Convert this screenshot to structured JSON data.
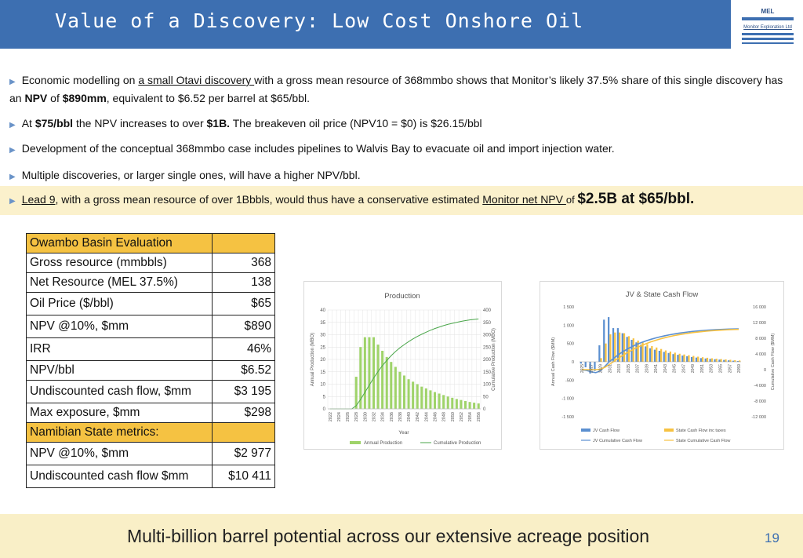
{
  "header": {
    "title": "Value of a Discovery: Low Cost Onshore Oil"
  },
  "logo": {
    "name": "MEL",
    "subtitle": "Monitor Exploration Ltd"
  },
  "bullets": {
    "b1": {
      "pre": "Economic modelling on ",
      "link": "a small Otavi discovery ",
      "mid": "with a gross mean resource of 368mmbo shows that Monitor’s likely 37.5% share of this single discovery has an ",
      "npv_label": "NPV",
      "mid2": " of ",
      "npv_value": "$890mm",
      "post": ", equivalent to $6.52 per barrel at $65/bbl."
    },
    "b2": {
      "pre": "At ",
      "price": "$75/bbl",
      "mid": " the NPV increases to over ",
      "value": "$1B.",
      "post": " The breakeven oil price (NPV10 = $0) is $26.15/bbl"
    },
    "b3": {
      "text": "Development of the conceptual 368mmbo case includes pipelines to Walvis Bay to evacuate oil and import injection water."
    },
    "b4": {
      "text": "Multiple discoveries, or larger single ones, will have a higher NPV/bbl."
    },
    "b5": {
      "link1": "Lead 9",
      "mid": ", with a gross mean resource of over 1Bbbls, would thus have a conservative estimated ",
      "link2": "Monitor net NPV ",
      "of": "of ",
      "big": "$2.5B at $65/bbl."
    }
  },
  "table": {
    "header1": "Owambo Basin Evaluation",
    "rows1": [
      {
        "label": "Gross resource (mmbbls)",
        "value": "368"
      },
      {
        "label": "Net Resource (MEL 37.5%)",
        "value": "138"
      },
      {
        "label": "Oil Price ($/bbl)",
        "value": "$65"
      },
      {
        "label": "NPV @10%, $mm",
        "value": "$890"
      },
      {
        "label": "IRR",
        "value": "46%"
      },
      {
        "label": "NPV/bbl",
        "value": "$6.52"
      },
      {
        "label": "Undiscounted cash flow, $mm",
        "value": "$3 195"
      },
      {
        "label": "Max exposure, $mm",
        "value": "$298"
      }
    ],
    "header2": "Namibian State metrics:",
    "rows2": [
      {
        "label": "NPV @10%, $mm",
        "value": "$2 977"
      },
      {
        "label": "Undiscounted cash flow $mm",
        "value": "$10 411"
      }
    ]
  },
  "chart_data": [
    {
      "type": "bar",
      "title": "Production",
      "xlabel": "Year",
      "ylabel": "Annual Production (MBO)",
      "y2label": "Cumulative Production (MBO)",
      "ylim": [
        0,
        40
      ],
      "y2lim": [
        0,
        400
      ],
      "yticks": [
        "0",
        "5",
        "10",
        "15",
        "20",
        "25",
        "30",
        "35",
        "40"
      ],
      "y2ticks": [
        "0",
        "50",
        "100",
        "150",
        "200",
        "250",
        "300",
        "350",
        "400"
      ],
      "xticks": [
        "2022",
        "2024",
        "2026",
        "2028",
        "2030",
        "2032",
        "2034",
        "2036",
        "2038",
        "2040",
        "2042",
        "2044",
        "2046",
        "2048",
        "2050",
        "2052",
        "2054",
        "2056"
      ],
      "years_start": 2022,
      "annual": [
        0,
        0,
        0,
        0,
        0,
        0,
        13,
        25,
        29,
        29,
        29,
        26,
        23.5,
        21,
        19,
        17,
        15,
        13.5,
        12,
        11,
        10,
        9,
        8.3,
        7.5,
        6.8,
        6.2,
        5.6,
        5,
        4.5,
        4,
        3.6,
        3.2,
        2.8,
        2.5,
        2.2
      ],
      "cumulative": [
        0,
        0,
        0,
        0,
        0,
        0,
        13,
        38,
        67,
        96,
        125,
        151,
        175,
        196,
        215,
        232,
        247,
        260,
        272,
        283,
        293,
        302,
        310,
        318,
        325,
        331,
        337,
        342,
        346,
        350,
        354,
        357,
        360,
        362,
        364
      ],
      "legend": [
        "Annual Production",
        "Cumulative Production"
      ],
      "legend_position": "bottom",
      "colors": {
        "annual": "#9fd36a",
        "cumulative": "#4aa64a"
      }
    },
    {
      "type": "bar",
      "title": "JV & State Cash Flow",
      "ylabel": "Annual Cash Flow ($MM)",
      "y2label": "Cumulative Cash Flow ($MM)",
      "ylim": [
        -1500,
        1500
      ],
      "y2lim": [
        -12000,
        16000
      ],
      "yticks": [
        "-1 500",
        "-1 000",
        "-500",
        "0",
        "500",
        "1 000",
        "1 500"
      ],
      "y2ticks": [
        "-12 000",
        "-8 000",
        "-4 000",
        "0",
        "4 000",
        "8 000",
        "12 000",
        "16 000"
      ],
      "xticks": [
        "2025",
        "2027",
        "2029",
        "2031",
        "2033",
        "2035",
        "2037",
        "2039",
        "2041",
        "2043",
        "2045",
        "2047",
        "2049",
        "2051",
        "2053",
        "2055",
        "2057",
        "2059"
      ],
      "years_start": 2025,
      "jv_annual": [
        -50,
        -150,
        -320,
        -250,
        450,
        1150,
        1220,
        920,
        920,
        780,
        680,
        600,
        530,
        470,
        420,
        370,
        330,
        300,
        270,
        240,
        210,
        190,
        170,
        150,
        130,
        115,
        100,
        90,
        80,
        70,
        60,
        50,
        40,
        30,
        20
      ],
      "state_annual": [
        0,
        0,
        0,
        0,
        100,
        500,
        750,
        800,
        800,
        780,
        700,
        640,
        580,
        530,
        480,
        430,
        390,
        350,
        310,
        280,
        250,
        220,
        200,
        180,
        160,
        140,
        125,
        110,
        95,
        85,
        75,
        65,
        55,
        45,
        35
      ],
      "jv_cumulative": [
        -50,
        -200,
        -520,
        -770,
        -320,
        830,
        2050,
        2970,
        3890,
        4670,
        5350,
        5950,
        6480,
        6950,
        7370,
        7740,
        8070,
        8370,
        8640,
        8880,
        9090,
        9280,
        9450,
        9600,
        9730,
        9845,
        9945,
        10035,
        10115,
        10185,
        10245,
        10295,
        10335,
        10365,
        10385
      ],
      "state_cumulative": [
        0,
        0,
        0,
        0,
        100,
        600,
        1350,
        2150,
        2950,
        3730,
        4430,
        5070,
        5650,
        6180,
        6660,
        7090,
        7480,
        7830,
        8140,
        8420,
        8670,
        8890,
        9090,
        9270,
        9430,
        9570,
        9695,
        9805,
        9900,
        9985,
        10060,
        10125,
        10180,
        10225,
        10260
      ],
      "legend": [
        "JV Cash Flow",
        "State Cash Flow inc taxes",
        "JV Cumulative Cash Flow",
        "State Cumulative Cash Flow"
      ],
      "legend_position": "bottom",
      "colors": {
        "jv": "#5b8fd0",
        "state": "#f7c242"
      }
    }
  ],
  "footer": {
    "text": "Multi-billion barrel potential across our extensive acreage position",
    "page": "19"
  }
}
